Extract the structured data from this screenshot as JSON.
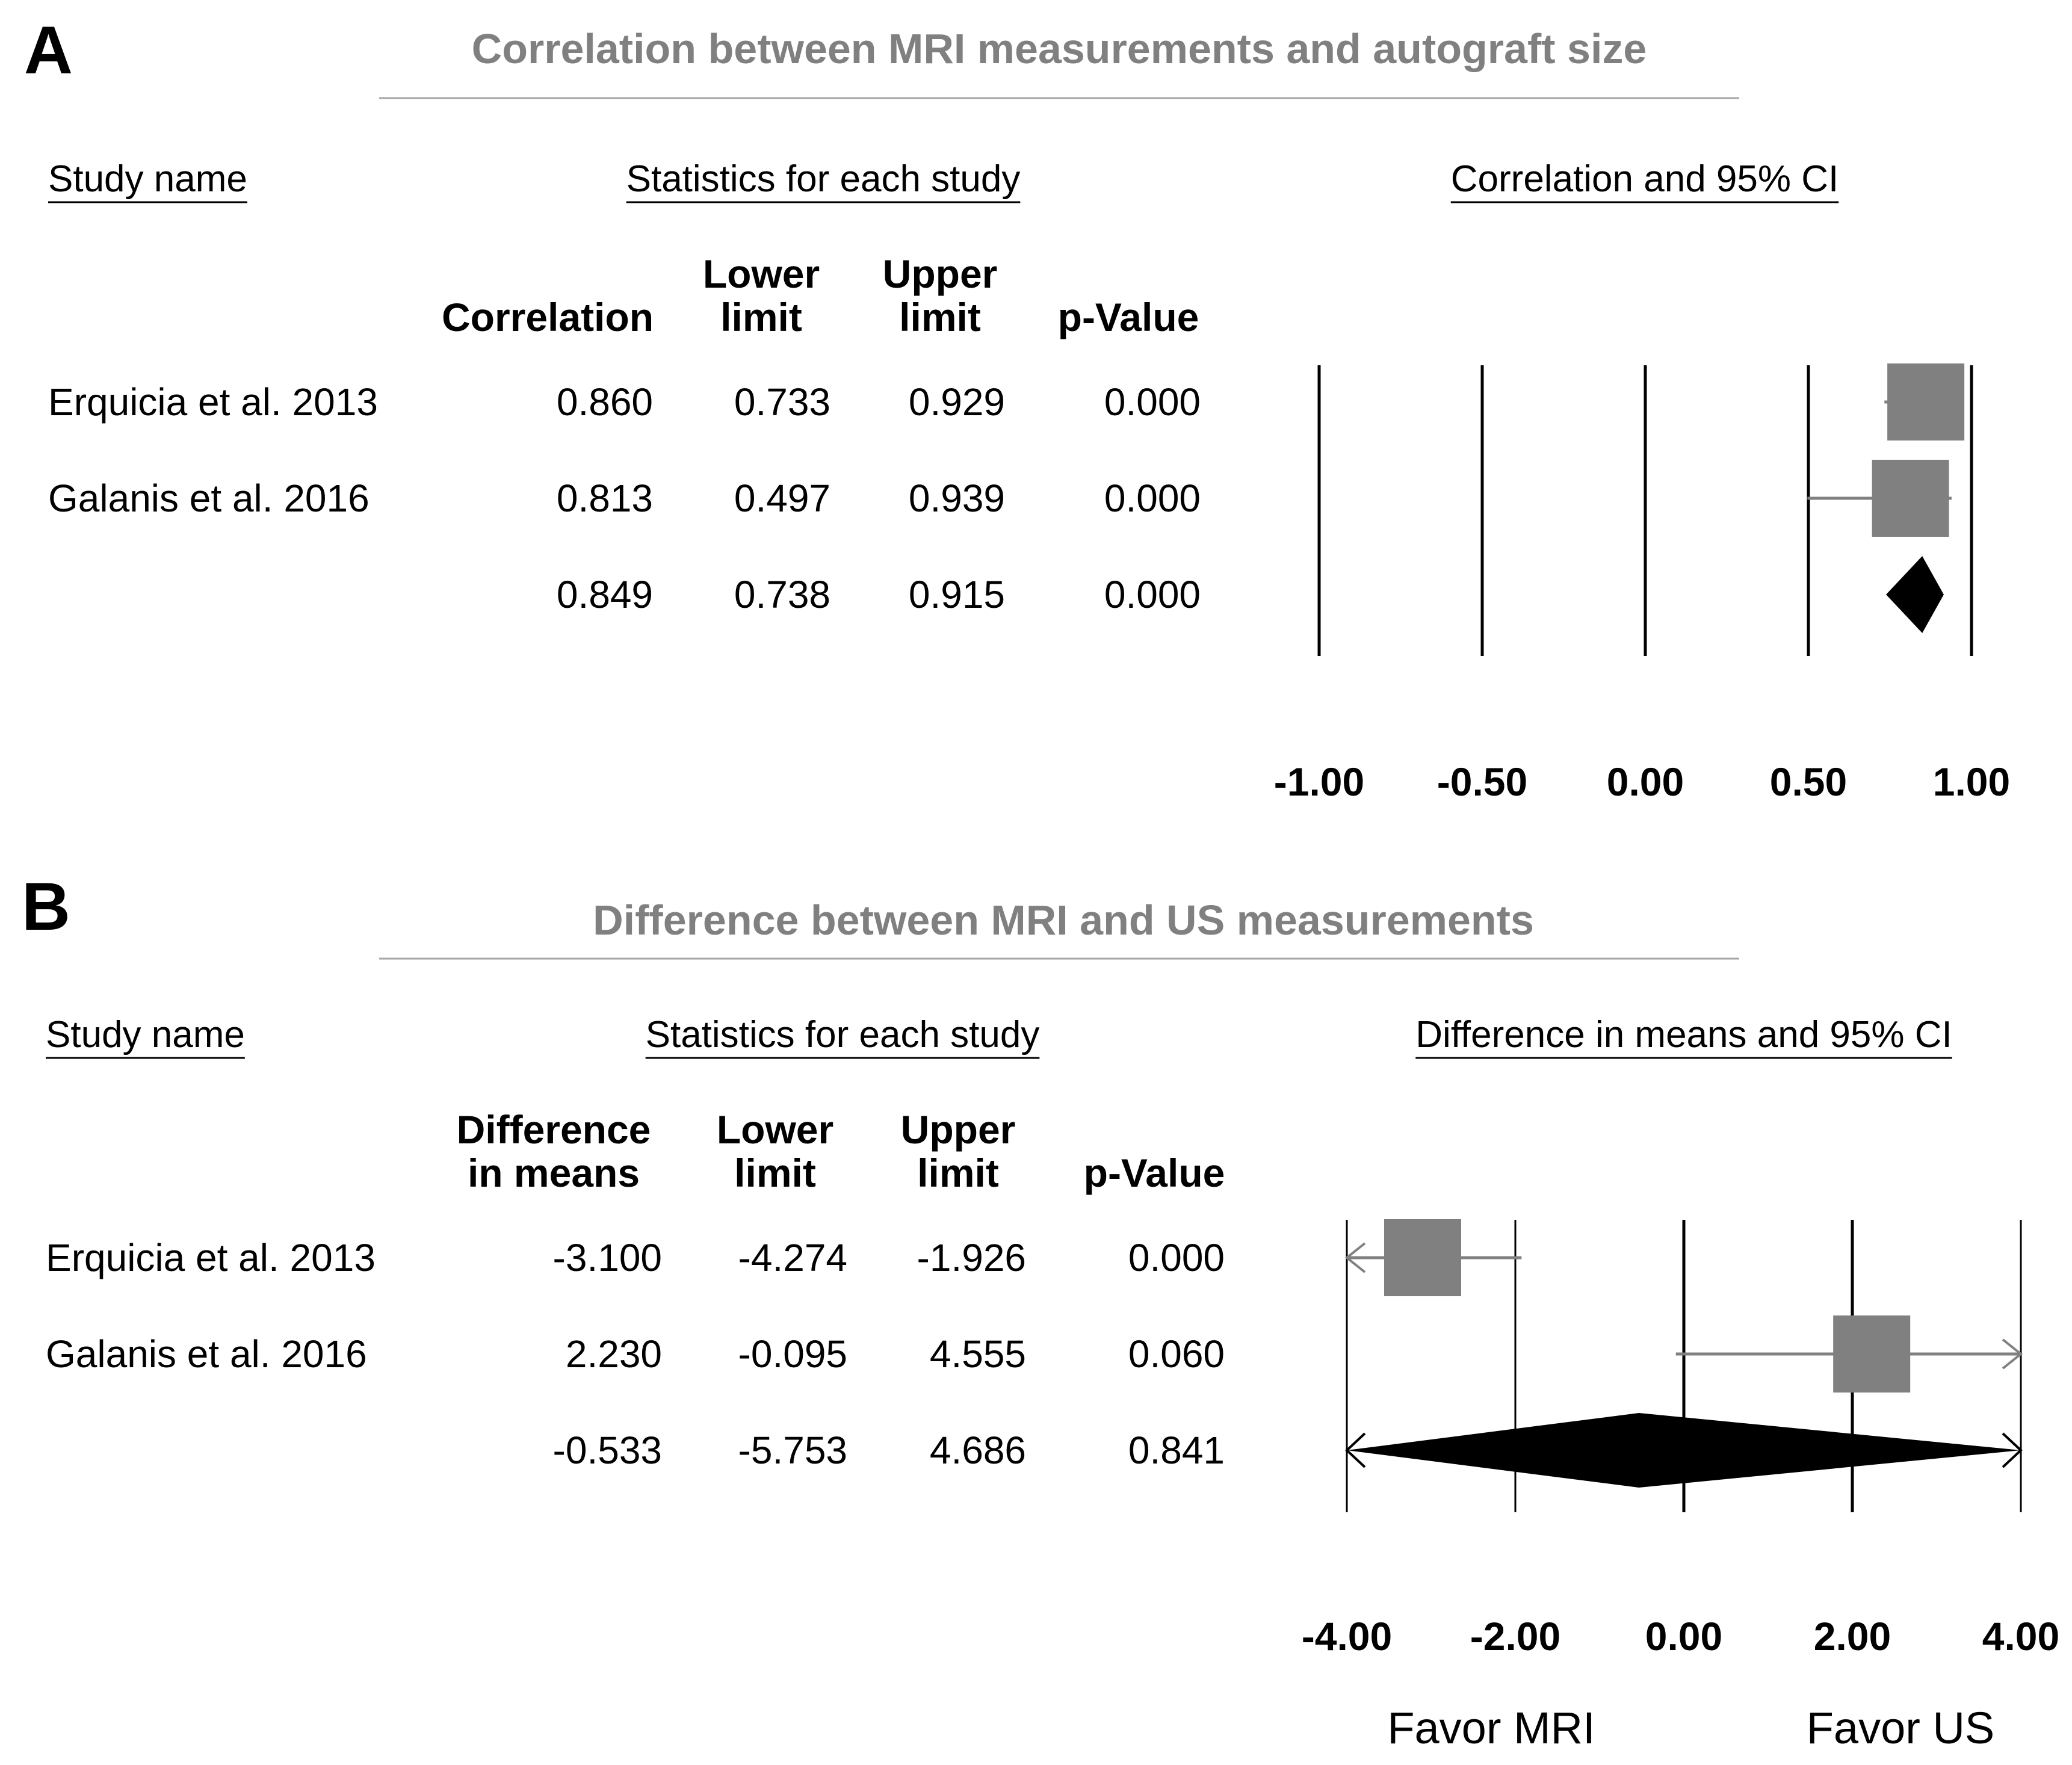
{
  "chart_data": [
    {
      "panel": "A",
      "type": "forest",
      "title": "Correlation between MRI measurements and autograft size",
      "section_headers": {
        "study": "Study name",
        "stats": "Statistics for each study",
        "plot": "Correlation and 95% CI"
      },
      "columns": [
        {
          "lines": [
            "",
            "Correlation"
          ]
        },
        {
          "lines": [
            "Lower",
            "limit"
          ]
        },
        {
          "lines": [
            "Upper",
            "limit"
          ]
        },
        {
          "lines": [
            "",
            "p-Value"
          ]
        }
      ],
      "rows": [
        {
          "study": "Erquicia et al. 2013",
          "est_text": "0.860",
          "lower_text": "0.733",
          "upper_text": "0.929",
          "p_text": "0.000",
          "est": 0.86,
          "lower": 0.733,
          "upper": 0.929,
          "kind": "study"
        },
        {
          "study": "Galanis et al. 2016",
          "est_text": "0.813",
          "lower_text": "0.497",
          "upper_text": "0.939",
          "p_text": "0.000",
          "est": 0.813,
          "lower": 0.497,
          "upper": 0.939,
          "kind": "study"
        },
        {
          "study": "",
          "est_text": "0.849",
          "lower_text": "0.738",
          "upper_text": "0.915",
          "p_text": "0.000",
          "est": 0.849,
          "lower": 0.738,
          "upper": 0.915,
          "kind": "summary"
        }
      ],
      "xlim": [
        -1.0,
        1.0
      ],
      "ticks": [
        -1.0,
        -0.5,
        0.0,
        0.5,
        1.0
      ],
      "tick_labels": [
        "-1.00",
        "-0.50",
        "0.00",
        "0.50",
        "1.00"
      ],
      "favor_left": "",
      "favor_right": ""
    },
    {
      "panel": "B",
      "type": "forest",
      "title": "Difference between MRI and US measurements",
      "section_headers": {
        "study": "Study name",
        "stats": "Statistics for each study",
        "plot": "Difference in means and 95% CI"
      },
      "columns": [
        {
          "lines": [
            "Difference",
            "in means"
          ]
        },
        {
          "lines": [
            "Lower",
            "limit"
          ]
        },
        {
          "lines": [
            "Upper",
            "limit"
          ]
        },
        {
          "lines": [
            "",
            "p-Value"
          ]
        }
      ],
      "rows": [
        {
          "study": "Erquicia et al. 2013",
          "est_text": "-3.100",
          "lower_text": "-4.274",
          "upper_text": "-1.926",
          "p_text": "0.000",
          "est": -3.1,
          "lower": -4.274,
          "upper": -1.926,
          "kind": "study"
        },
        {
          "study": "Galanis et al.  2016",
          "est_text": "2.230",
          "lower_text": "-0.095",
          "upper_text": "4.555",
          "p_text": "0.060",
          "est": 2.23,
          "lower": -0.095,
          "upper": 4.555,
          "kind": "study"
        },
        {
          "study": "",
          "est_text": "-0.533",
          "lower_text": "-5.753",
          "upper_text": "4.686",
          "p_text": "0.841",
          "est": -0.533,
          "lower": -5.753,
          "upper": 4.686,
          "kind": "summary"
        }
      ],
      "xlim": [
        -4.0,
        4.0
      ],
      "ticks": [
        -4.0,
        -2.0,
        0.0,
        2.0,
        4.0
      ],
      "tick_labels": [
        "-4.00",
        "-2.00",
        "0.00",
        "2.00",
        "4.00"
      ],
      "favor_left": "Favor  MRI",
      "favor_right": "Favor US"
    }
  ]
}
